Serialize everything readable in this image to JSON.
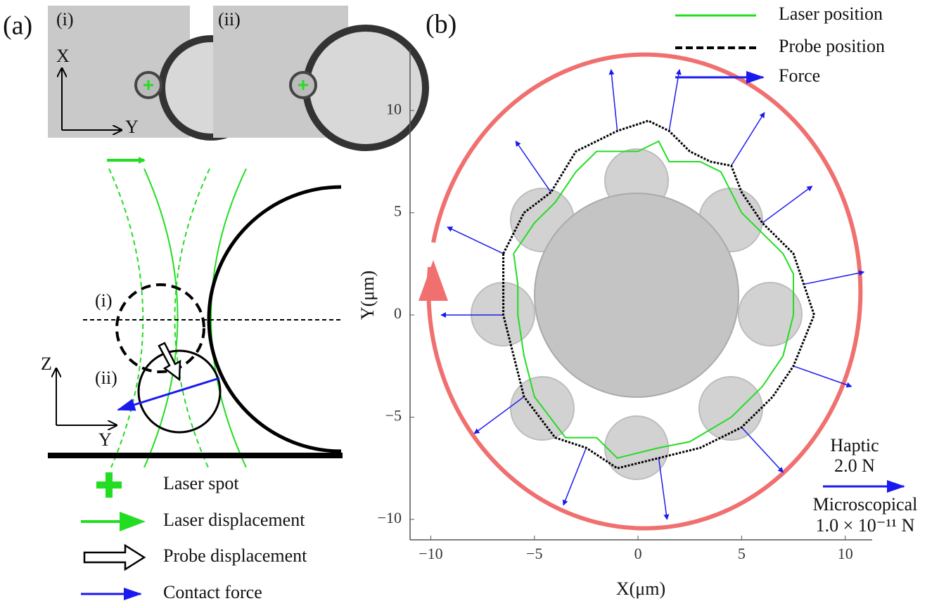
{
  "panel_a": {
    "label": "(a)",
    "micrographs": [
      {
        "label": "(i)",
        "x_axis": "X",
        "y_axis": "Y"
      },
      {
        "label": "(ii)"
      }
    ],
    "diagram": {
      "state_i": "(i)",
      "state_ii": "(ii)",
      "z_axis": "Z",
      "y_axis": "Y"
    },
    "legend": [
      "Laser spot",
      "Laser displacement",
      "Probe displacement",
      "Contact force"
    ]
  },
  "chart_data": {
    "type": "line",
    "panel_label": "(b)",
    "x_label": "X(μm)",
    "y_label": "Y(μm)",
    "xlim": [
      -11,
      11.3
    ],
    "ylim": [
      -11,
      13
    ],
    "xticks": [
      {
        "value": -10,
        "label": "−10"
      },
      {
        "value": -5,
        "label": "−5"
      },
      0,
      5,
      10
    ],
    "yticks": [
      {
        "value": -10,
        "label": "−10"
      },
      {
        "value": -5,
        "label": "−5"
      },
      0,
      5,
      10
    ],
    "series": [
      {
        "name": "Laser position",
        "color": "#22dd22",
        "line_style": "solid",
        "x": [
          -6,
          -5,
          -4,
          -3,
          -2,
          -1,
          0,
          1,
          1.5,
          3,
          4,
          4.5,
          5,
          6,
          7,
          7.5,
          7.5,
          7,
          6,
          4.5,
          2.5,
          1,
          -1,
          -2,
          -3.5,
          -5,
          -5.5,
          -5.8,
          -5.8,
          -6
        ],
        "y": [
          3,
          4.5,
          5.5,
          7,
          8,
          8,
          8,
          8.5,
          7.5,
          7.5,
          7,
          6,
          5,
          4,
          3,
          2,
          0,
          -2,
          -3.5,
          -5,
          -6.2,
          -6.5,
          -7,
          -6,
          -6,
          -4,
          -2,
          0,
          1.5,
          3
        ]
      },
      {
        "name": "Probe position",
        "color": "#000000",
        "line_style": "dashed",
        "x": [
          -6.5,
          -5.5,
          -4.2,
          -3,
          -2,
          -1,
          0.5,
          1.5,
          2.5,
          3.5,
          4.5,
          5,
          6,
          7.5,
          8,
          8.5,
          7.5,
          6.5,
          5,
          3,
          1,
          -1,
          -2.5,
          -4,
          -5.5,
          -6,
          -6.5,
          -6.5,
          -6.5
        ],
        "y": [
          3,
          5,
          6,
          8,
          8.5,
          9,
          9.5,
          9,
          8,
          7.5,
          7.3,
          6,
          4.5,
          3,
          1.5,
          0,
          -2.5,
          -4,
          -5.5,
          -6.5,
          -7,
          -7.5,
          -6.5,
          -6,
          -4,
          -2,
          0,
          1.5,
          3
        ]
      }
    ],
    "force": {
      "name": "Force",
      "color": "#1a1aee",
      "x": [
        -6.5,
        -4.2,
        -1,
        1.5,
        4.5,
        6,
        8,
        7.5,
        5,
        1,
        -2.5,
        -5.5,
        -6.5
      ],
      "y": [
        3,
        6,
        9,
        9,
        7.3,
        4.5,
        1.5,
        -2.5,
        -5.5,
        -7,
        -6.5,
        -4,
        0
      ],
      "u": [
        -2.7,
        -1.7,
        -0.3,
        0.5,
        1.6,
        2.4,
        2.9,
        2.8,
        2,
        0.4,
        -1.1,
        -2.4,
        -3
      ],
      "v": [
        1.3,
        2.5,
        3,
        3,
        2.6,
        1.8,
        0.6,
        -1,
        -2.2,
        -3,
        -2.8,
        -1.8,
        0
      ]
    },
    "scale": {
      "haptic_label": "Haptic",
      "haptic_value": "2.0 N",
      "micro_label": "Microscopical",
      "micro_value": "1.0 × 10⁻¹¹ N"
    }
  }
}
